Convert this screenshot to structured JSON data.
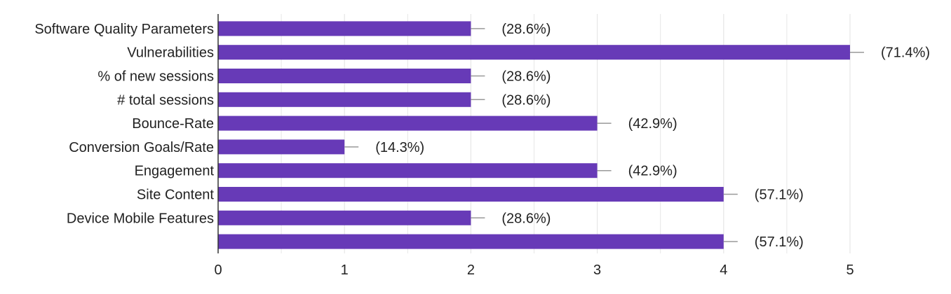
{
  "chart_data": {
    "type": "bar",
    "orientation": "horizontal",
    "categories": [
      "Software Quality Parameters",
      "Vulnerabilities",
      "% of new sessions",
      "# total sessions",
      "Bounce-Rate",
      "Conversion Goals/Rate",
      "Engagement",
      "Site Content",
      "Device Mobile Features",
      ""
    ],
    "values": [
      2,
      5,
      2,
      2,
      3,
      1,
      3,
      4,
      2,
      4
    ],
    "data_labels": [
      "(28.6%)",
      "(71.4%)",
      "(28.6%)",
      "(28.6%)",
      "(42.9%)",
      "(14.3%)",
      "(42.9%)",
      "(57.1%)",
      "(28.6%)",
      "(57.1%)"
    ],
    "xticks": [
      "0",
      "1",
      "2",
      "3",
      "4",
      "5"
    ],
    "xlim": [
      0,
      5
    ],
    "grid": true,
    "colors": {
      "bar": "#673ab7",
      "grid": "#e6e6e6",
      "axis": "#333333",
      "tick_line": "#999999"
    }
  }
}
